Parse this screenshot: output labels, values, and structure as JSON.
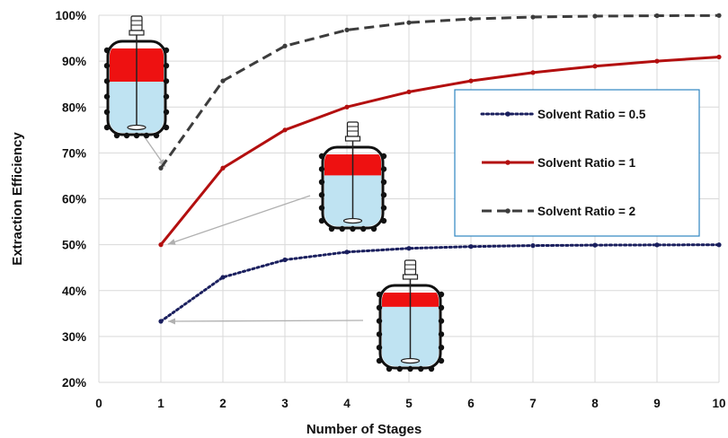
{
  "chart_data": {
    "type": "line",
    "xlabel": "Number of Stages",
    "ylabel": "Extraction Efficiency",
    "xlim": [
      0,
      10
    ],
    "ylim": [
      0.2,
      1.0
    ],
    "x_ticks": [
      "0",
      "1",
      "2",
      "3",
      "4",
      "5",
      "6",
      "7",
      "8",
      "9",
      "10"
    ],
    "y_ticks": [
      "20%",
      "30%",
      "40%",
      "50%",
      "60%",
      "70%",
      "80%",
      "90%",
      "100%"
    ],
    "grid": true,
    "legend_position": "right",
    "x": [
      1,
      2,
      3,
      4,
      5,
      6,
      7,
      8,
      9,
      10
    ],
    "series": [
      {
        "name": "Solvent Ratio = 0.5",
        "color": "#1a1f5e",
        "style": "dotted",
        "values": [
          0.333,
          0.429,
          0.467,
          0.484,
          0.492,
          0.496,
          0.498,
          0.499,
          0.4995,
          0.4998
        ]
      },
      {
        "name": "Solvent Ratio = 1",
        "color": "#b30f0f",
        "style": "solid",
        "values": [
          0.5,
          0.667,
          0.75,
          0.8,
          0.833,
          0.857,
          0.875,
          0.889,
          0.9,
          0.909
        ]
      },
      {
        "name": "Solvent Ratio = 2",
        "color": "#3c3c3c",
        "style": "dashed",
        "values": [
          0.667,
          0.857,
          0.933,
          0.968,
          0.984,
          0.992,
          0.996,
          0.998,
          0.999,
          0.9995
        ]
      }
    ],
    "vessels": [
      {
        "name": "vessel-solvent-ratio-2",
        "red_fraction": 0.67,
        "points_to_x": 1,
        "points_to_series": 2
      },
      {
        "name": "vessel-solvent-ratio-1",
        "red_fraction": 0.5,
        "points_to_x": 1,
        "points_to_series": 1
      },
      {
        "name": "vessel-solvent-ratio-0.5",
        "red_fraction": 0.33,
        "points_to_x": 1,
        "points_to_series": 0
      }
    ],
    "colors": {
      "grid": "#d9d9d9",
      "legend_border": "#2e86c1",
      "solvent_red": "#ee1111",
      "liquid_blue": "#bfe3f2"
    }
  }
}
